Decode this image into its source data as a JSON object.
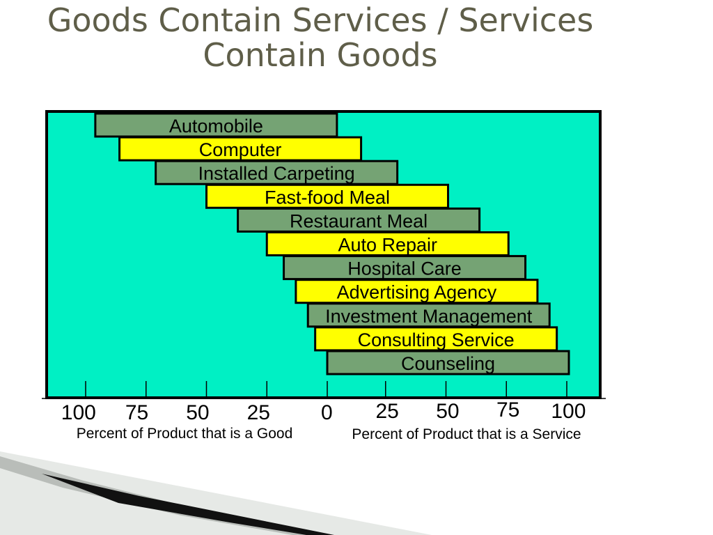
{
  "slide": {
    "title_line1": "Goods Contain Services / Services",
    "title_line2": "Contain Goods"
  },
  "colors": {
    "plot_background": "#00f0c4",
    "bar_green": "#75a374",
    "bar_yellow": "#ffff00",
    "title_color": "#5f5e49"
  },
  "chart_data": {
    "type": "bar",
    "orientation": "horizontal-floating",
    "title": "",
    "categories": [
      "Automobile",
      "Computer",
      "Installed Carpeting",
      "Fast-food Meal",
      "Restaurant Meal",
      "Auto Repair",
      "Hospital Care",
      "Advertising Agency",
      "Investment Management",
      "Consulting Service",
      "Counseling"
    ],
    "bars": [
      {
        "label": "Automobile",
        "goods_end": 96,
        "service_end": 4,
        "color": "green"
      },
      {
        "label": "Computer",
        "goods_end": 86,
        "service_end": 14,
        "color": "yellow"
      },
      {
        "label": "Installed Carpeting",
        "goods_end": 71,
        "service_end": 29,
        "color": "green"
      },
      {
        "label": "Fast-food Meal",
        "goods_end": 50,
        "service_end": 50,
        "color": "yellow"
      },
      {
        "label": "Restaurant Meal",
        "goods_end": 37,
        "service_end": 63,
        "color": "green"
      },
      {
        "label": "Auto Repair",
        "goods_end": 25,
        "service_end": 75,
        "color": "yellow"
      },
      {
        "label": "Hospital Care",
        "goods_end": 18,
        "service_end": 82,
        "color": "green"
      },
      {
        "label": "Advertising Agency",
        "goods_end": 13,
        "service_end": 87,
        "color": "yellow"
      },
      {
        "label": "Investment Management",
        "goods_end": 8,
        "service_end": 92,
        "color": "green"
      },
      {
        "label": "Consulting Service",
        "goods_end": 5,
        "service_end": 95,
        "color": "yellow"
      },
      {
        "label": "Counseling",
        "goods_end": 0,
        "service_end": 100,
        "color": "green"
      }
    ],
    "x_ticks": [
      {
        "value": -100,
        "label": "100"
      },
      {
        "value": -75,
        "label": "75"
      },
      {
        "value": -50,
        "label": "50"
      },
      {
        "value": -25,
        "label": "25"
      },
      {
        "value": 0,
        "label": "0"
      },
      {
        "value": 25,
        "label": "25"
      },
      {
        "value": 50,
        "label": "50"
      },
      {
        "value": 75,
        "label": "75"
      },
      {
        "value": 100,
        "label": "100"
      }
    ],
    "xlim": [
      -115,
      115
    ],
    "xlabel_left": "Percent of Product that is a Good",
    "xlabel_right": "Percent of Product that is a Service",
    "grid": false,
    "legend": "none"
  }
}
